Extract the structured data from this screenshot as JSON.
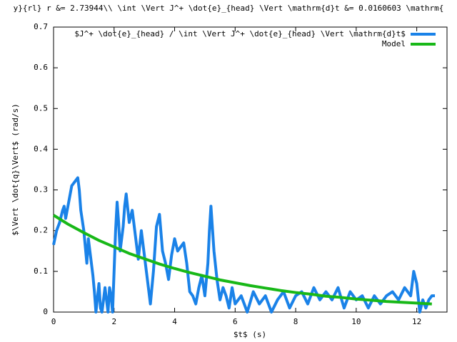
{
  "chart_data": {
    "type": "line",
    "title": "y}{rl} r &= 2.73944\\\\ \\int \\Vert J^+ \\dot{e}_{head} \\Vert \\mathrm{d}t &=  0.0160603 \\mathrm{",
    "x_label": "$t$ (s)",
    "y_label": "$\\Vert \\dot{q}\\Vert$ (rad/s)",
    "xlim": [
      0,
      13
    ],
    "xticks": [
      0,
      2,
      4,
      6,
      8,
      10,
      12
    ],
    "ylim": [
      0,
      0.7
    ],
    "yticks": [
      0,
      0.1,
      0.2,
      0.3,
      0.4,
      0.5,
      0.6,
      0.7
    ],
    "legend": "top-right",
    "series": [
      {
        "name": "$J^+ \\dot{e}_{head} / \\int \\Vert J^+ \\dot{e}_{head} \\Vert \\mathrm{d}t$",
        "color": "#1a82e8",
        "x": [
          0,
          0.1,
          0.2,
          0.3,
          0.35,
          0.4,
          0.5,
          0.6,
          0.7,
          0.8,
          0.85,
          0.9,
          1.0,
          1.1,
          1.15,
          1.2,
          1.3,
          1.35,
          1.4,
          1.5,
          1.55,
          1.6,
          1.7,
          1.8,
          1.85,
          1.9,
          1.95,
          2.0,
          2.05,
          2.1,
          2.15,
          2.2,
          2.3,
          2.35,
          2.4,
          2.5,
          2.6,
          2.7,
          2.8,
          2.9,
          3.0,
          3.1,
          3.2,
          3.3,
          3.4,
          3.5,
          3.6,
          3.7,
          3.8,
          3.9,
          4.0,
          4.1,
          4.2,
          4.3,
          4.4,
          4.5,
          4.6,
          4.7,
          4.8,
          4.9,
          5.0,
          5.1,
          5.15,
          5.2,
          5.3,
          5.4,
          5.5,
          5.6,
          5.7,
          5.8,
          5.9,
          6.0,
          6.2,
          6.4,
          6.6,
          6.8,
          7.0,
          7.2,
          7.4,
          7.6,
          7.8,
          8.0,
          8.2,
          8.4,
          8.6,
          8.8,
          9.0,
          9.2,
          9.4,
          9.6,
          9.8,
          10.0,
          10.2,
          10.4,
          10.6,
          10.8,
          11.0,
          11.2,
          11.4,
          11.6,
          11.8,
          11.9,
          12.0,
          12.1,
          12.2,
          12.3,
          12.4,
          12.5,
          12.6
        ],
        "values": [
          0.165,
          0.2,
          0.22,
          0.25,
          0.26,
          0.23,
          0.27,
          0.31,
          0.32,
          0.33,
          0.3,
          0.25,
          0.2,
          0.12,
          0.18,
          0.15,
          0.09,
          0.05,
          0.0,
          0.07,
          0.01,
          0.0,
          0.06,
          0.0,
          0.06,
          0.04,
          0.0,
          0.1,
          0.2,
          0.27,
          0.22,
          0.15,
          0.21,
          0.26,
          0.29,
          0.22,
          0.25,
          0.19,
          0.13,
          0.2,
          0.14,
          0.08,
          0.02,
          0.1,
          0.21,
          0.24,
          0.15,
          0.12,
          0.08,
          0.14,
          0.18,
          0.15,
          0.16,
          0.17,
          0.12,
          0.05,
          0.04,
          0.02,
          0.06,
          0.09,
          0.04,
          0.12,
          0.2,
          0.26,
          0.15,
          0.08,
          0.03,
          0.06,
          0.04,
          0.01,
          0.06,
          0.02,
          0.04,
          0.0,
          0.05,
          0.02,
          0.04,
          0.0,
          0.03,
          0.05,
          0.01,
          0.04,
          0.05,
          0.02,
          0.06,
          0.03,
          0.05,
          0.03,
          0.06,
          0.01,
          0.05,
          0.03,
          0.04,
          0.01,
          0.04,
          0.02,
          0.04,
          0.05,
          0.03,
          0.06,
          0.04,
          0.1,
          0.07,
          0.0,
          0.03,
          0.01,
          0.03,
          0.04,
          0.04
        ]
      },
      {
        "name": "Model",
        "color": "#18b818",
        "x": [
          0,
          0.5,
          1,
          1.5,
          2,
          2.5,
          3,
          3.5,
          4,
          4.5,
          5,
          5.5,
          6,
          6.5,
          7,
          7.5,
          8,
          8.5,
          9,
          9.5,
          10,
          10.5,
          11,
          11.5,
          12,
          12.5
        ],
        "values": [
          0.238,
          0.215,
          0.195,
          0.176,
          0.16,
          0.144,
          0.131,
          0.118,
          0.107,
          0.097,
          0.088,
          0.079,
          0.072,
          0.065,
          0.059,
          0.053,
          0.048,
          0.044,
          0.039,
          0.036,
          0.032,
          0.029,
          0.026,
          0.024,
          0.022,
          0.02
        ]
      }
    ]
  }
}
